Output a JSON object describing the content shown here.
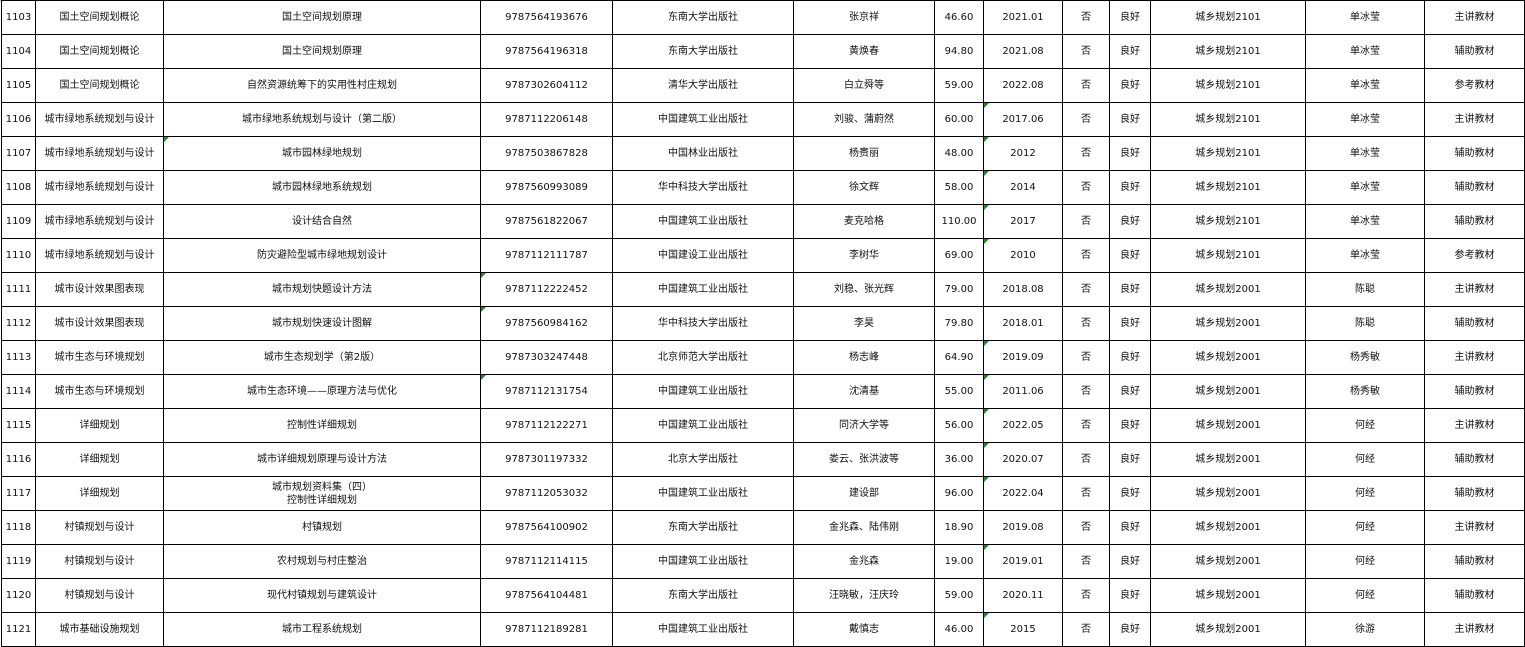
{
  "colors": {
    "grid": "#000000",
    "error_marker": "#1f8a2e",
    "top_border": "#a7b1cc"
  },
  "rows": [
    {
      "id": "1103",
      "course": "国土空间规划概论",
      "title": "国土空间规划原理",
      "isbn": "9787564193676",
      "publisher": "东南大学出版社",
      "author": "张京祥",
      "price": "46.60",
      "date": "2021.01",
      "flag": "否",
      "condition": "良好",
      "class": "城乡规划2101",
      "teacher": "单冰莹",
      "type": "主讲教材",
      "markers": []
    },
    {
      "id": "1104",
      "course": "国土空间规划概论",
      "title": "国土空间规划原理",
      "isbn": "9787564196318",
      "publisher": "东南大学出版社",
      "author": "黄焕春",
      "price": "94.80",
      "date": "2021.08",
      "flag": "否",
      "condition": "良好",
      "class": "城乡规划2101",
      "teacher": "单冰莹",
      "type": "辅助教材",
      "markers": []
    },
    {
      "id": "1105",
      "course": "国土空间规划概论",
      "title": "自然资源统筹下的实用性村庄规划",
      "isbn": "9787302604112",
      "publisher": "清华大学出版社",
      "author": "白立舜等",
      "price": "59.00",
      "date": "2022.08",
      "flag": "否",
      "condition": "良好",
      "class": "城乡规划2101",
      "teacher": "单冰莹",
      "type": "参考教材",
      "markers": []
    },
    {
      "id": "1106",
      "course": "城市绿地系统规划与设计",
      "title": "城市绿地系统规划与设计（第二版）",
      "isbn": "9787112206148",
      "publisher": "中国建筑工业出版社",
      "author": "刘骏、蒲蔚然",
      "price": "60.00",
      "date": "2017.06",
      "flag": "否",
      "condition": "良好",
      "class": "城乡规划2101",
      "teacher": "单冰莹",
      "type": "主讲教材",
      "markers": [
        "date"
      ]
    },
    {
      "id": "1107",
      "course": "城市绿地系统规划与设计",
      "title": "城市园林绿地规划",
      "isbn": "9787503867828",
      "publisher": "中国林业出版社",
      "author": "杨赉丽",
      "price": "48.00",
      "date": "2012",
      "flag": "否",
      "condition": "良好",
      "class": "城乡规划2101",
      "teacher": "单冰莹",
      "type": "辅助教材",
      "markers": [
        "title",
        "date"
      ]
    },
    {
      "id": "1108",
      "course": "城市绿地系统规划与设计",
      "title": "城市园林绿地系统规划",
      "isbn": "9787560993089",
      "publisher": "华中科技大学出版社",
      "author": "徐文辉",
      "price": "58.00",
      "date": "2014",
      "flag": "否",
      "condition": "良好",
      "class": "城乡规划2101",
      "teacher": "单冰莹",
      "type": "辅助教材",
      "markers": [
        "date"
      ]
    },
    {
      "id": "1109",
      "course": "城市绿地系统规划与设计",
      "title": "设计结合自然",
      "isbn": "9787561822067",
      "publisher": "中国建筑工业出版社",
      "author": "麦克哈格",
      "price": "110.00",
      "date": "2017",
      "flag": "否",
      "condition": "良好",
      "class": "城乡规划2101",
      "teacher": "单冰莹",
      "type": "辅助教材",
      "markers": [
        "date"
      ]
    },
    {
      "id": "1110",
      "course": "城市绿地系统规划与设计",
      "title": "防灾避险型城市绿地规划设计",
      "isbn": "9787112111787",
      "publisher": "中国建设工业出版社",
      "author": "李树华",
      "price": "69.00",
      "date": "2010",
      "flag": "否",
      "condition": "良好",
      "class": "城乡规划2101",
      "teacher": "单冰莹",
      "type": "参考教材",
      "markers": [
        "date"
      ]
    },
    {
      "id": "1111",
      "course": "城市设计效果图表现",
      "title": "城市规划快题设计方法",
      "isbn": "9787112222452",
      "publisher": "中国建筑工业出版社",
      "author": "刘稳、张光辉",
      "price": "79.00",
      "date": "2018.08",
      "flag": "否",
      "condition": "良好",
      "class": "城乡规划2001",
      "teacher": "陈聪",
      "type": "主讲教材",
      "markers": [
        "isbn"
      ]
    },
    {
      "id": "1112",
      "course": "城市设计效果图表现",
      "title": "城市规划快速设计图解",
      "isbn": "9787560984162",
      "publisher": "华中科技大学出版社",
      "author": "李昊",
      "price": "79.80",
      "date": "2018.01",
      "flag": "否",
      "condition": "良好",
      "class": "城乡规划2001",
      "teacher": "陈聪",
      "type": "辅助教材",
      "markers": [
        "isbn"
      ]
    },
    {
      "id": "1113",
      "course": "城市生态与环境规划",
      "title": "城市生态规划学（第2版）",
      "isbn": "9787303247448",
      "publisher": "北京师范大学出版社",
      "author": "杨志峰",
      "price": "64.90",
      "date": "2019.09",
      "flag": "否",
      "condition": "良好",
      "class": "城乡规划2001",
      "teacher": "杨秀敏",
      "type": "主讲教材",
      "markers": [
        "date"
      ]
    },
    {
      "id": "1114",
      "course": "城市生态与环境规划",
      "title": "城市生态环境——原理方法与优化",
      "isbn": "9787112131754",
      "publisher": "中国建筑工业出版社",
      "author": "沈清基",
      "price": "55.00",
      "date": "2011.06",
      "flag": "否",
      "condition": "良好",
      "class": "城乡规划2001",
      "teacher": "杨秀敏",
      "type": "辅助教材",
      "markers": [
        "isbn",
        "date"
      ]
    },
    {
      "id": "1115",
      "course": "详细规划",
      "title": "控制性详细规划",
      "isbn": "9787112122271",
      "publisher": "中国建筑工业出版社",
      "author": "同济大学等",
      "price": "56.00",
      "date": "2022.05",
      "flag": "否",
      "condition": "良好",
      "class": "城乡规划2001",
      "teacher": "何经",
      "type": "主讲教材",
      "markers": [
        "date"
      ]
    },
    {
      "id": "1116",
      "course": "详细规划",
      "title": "城市详细规划原理与设计方法",
      "isbn": "9787301197332",
      "publisher": "北京大学出版社",
      "author": "娄云、张洪波等",
      "price": "36.00",
      "date": "2020.07",
      "flag": "否",
      "condition": "良好",
      "class": "城乡规划2001",
      "teacher": "何经",
      "type": "辅助教材",
      "markers": [
        "date"
      ]
    },
    {
      "id": "1117",
      "course": "详细规划",
      "title": "城市规划资料集（四）\n控制性详细规划",
      "isbn": "9787112053032",
      "publisher": "中国建筑工业出版社",
      "author": "建设部",
      "price": "96.00",
      "date": "2022.04",
      "flag": "否",
      "condition": "良好",
      "class": "城乡规划2001",
      "teacher": "何经",
      "type": "辅助教材",
      "markers": [
        "date"
      ]
    },
    {
      "id": "1118",
      "course": "村镇规划与设计",
      "title": "村镇规划",
      "isbn": "9787564100902",
      "publisher": "东南大学出版社",
      "author": "金兆森、陆伟刚",
      "price": "18.90",
      "date": "2019.08",
      "flag": "否",
      "condition": "良好",
      "class": "城乡规划2001",
      "teacher": "何经",
      "type": "主讲教材",
      "markers": []
    },
    {
      "id": "1119",
      "course": "村镇规划与设计",
      "title": "农村规划与村庄整治",
      "isbn": "9787112114115",
      "publisher": "中国建筑工业出版社",
      "author": "金兆森",
      "price": "19.00",
      "date": "2019.01",
      "flag": "否",
      "condition": "良好",
      "class": "城乡规划2001",
      "teacher": "何经",
      "type": "辅助教材",
      "markers": [
        "date"
      ]
    },
    {
      "id": "1120",
      "course": "村镇规划与设计",
      "title": "现代村镇规划与建筑设计",
      "isbn": "9787564104481",
      "publisher": "东南大学出版社",
      "author": "汪晓敏，汪庆玲",
      "price": "59.00",
      "date": "2020.11",
      "flag": "否",
      "condition": "良好",
      "class": "城乡规划2001",
      "teacher": "何经",
      "type": "辅助教材",
      "markers": []
    },
    {
      "id": "1121",
      "course": "城市基础设施规划",
      "title": "城市工程系统规划",
      "isbn": "9787112189281",
      "publisher": "中国建筑工业出版社",
      "author": "戴慎志",
      "price": "46.00",
      "date": "2015",
      "flag": "否",
      "condition": "良好",
      "class": "城乡规划2001",
      "teacher": "徐游",
      "type": "主讲教材",
      "markers": [
        "date"
      ]
    }
  ]
}
